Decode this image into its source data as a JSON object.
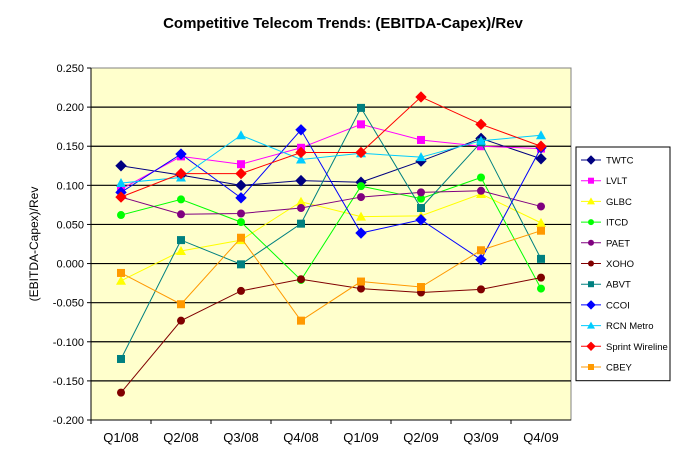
{
  "chart_data": {
    "type": "line",
    "title": "Competitive Telecom Trends: (EBITDA-Capex)/Rev",
    "xlabel": "",
    "ylabel": "(EBITDA-Capex)/Rev",
    "ylim": [
      -0.2,
      0.25
    ],
    "yticks": [
      "0.250",
      "0.200",
      "0.150",
      "0.100",
      "0.050",
      "0.000",
      "-0.050",
      "-0.100",
      "-0.150",
      "-0.200"
    ],
    "grid": true,
    "legend_placement": "right",
    "plot_background": "#FFFFCC",
    "categories": [
      "Q1/08",
      "Q2/08",
      "Q3/08",
      "Q4/08",
      "Q1/09",
      "Q2/09",
      "Q3/09",
      "Q4/09"
    ],
    "series": [
      {
        "name": "TWTC",
        "color": "#000080",
        "marker": "diamond",
        "values": [
          0.125,
          0.113,
          0.1,
          0.106,
          0.104,
          0.131,
          0.16,
          0.134
        ]
      },
      {
        "name": "LVLT",
        "color": "#FF00FF",
        "marker": "square",
        "values": [
          0.095,
          0.137,
          0.127,
          0.148,
          0.178,
          0.158,
          0.15,
          0.147
        ]
      },
      {
        "name": "GLBC",
        "color": "#FFFF00",
        "marker": "triangle",
        "values": [
          -0.022,
          0.016,
          0.03,
          0.079,
          0.06,
          0.061,
          0.089,
          0.052
        ]
      },
      {
        "name": "ITCD",
        "color": "#00FF00",
        "marker": "circle",
        "values": [
          0.062,
          0.082,
          0.053,
          -0.021,
          0.099,
          0.083,
          0.11,
          -0.032
        ]
      },
      {
        "name": "PAET",
        "color": "#800080",
        "marker": "circle",
        "values": [
          0.085,
          0.063,
          0.064,
          0.071,
          0.085,
          0.091,
          0.093,
          0.073
        ]
      },
      {
        "name": "XOHO",
        "color": "#800000",
        "marker": "circle",
        "values": [
          -0.165,
          -0.073,
          -0.035,
          -0.02,
          -0.032,
          -0.037,
          -0.033,
          -0.018
        ]
      },
      {
        "name": "ABVT",
        "color": "#008080",
        "marker": "square",
        "values": [
          -0.122,
          0.03,
          -0.001,
          0.051,
          0.199,
          0.071,
          0.155,
          0.006
        ]
      },
      {
        "name": "CCOI",
        "color": "#0000FF",
        "marker": "diamond",
        "values": [
          0.091,
          0.14,
          0.084,
          0.171,
          0.039,
          0.056,
          0.005,
          0.148
        ]
      },
      {
        "name": "RCN Metro",
        "color": "#00CCFF",
        "marker": "triangle",
        "values": [
          0.103,
          0.11,
          0.164,
          0.133,
          0.141,
          0.136,
          0.157,
          0.164
        ]
      },
      {
        "name": "Sprint Wireline",
        "color": "#FF0000",
        "marker": "diamond",
        "values": [
          0.085,
          0.115,
          0.115,
          0.142,
          0.142,
          0.213,
          0.178,
          0.15
        ]
      },
      {
        "name": "CBEY",
        "color": "#FF9900",
        "marker": "square",
        "values": [
          -0.012,
          -0.052,
          0.033,
          -0.073,
          -0.023,
          -0.03,
          0.017,
          0.042
        ]
      }
    ]
  }
}
